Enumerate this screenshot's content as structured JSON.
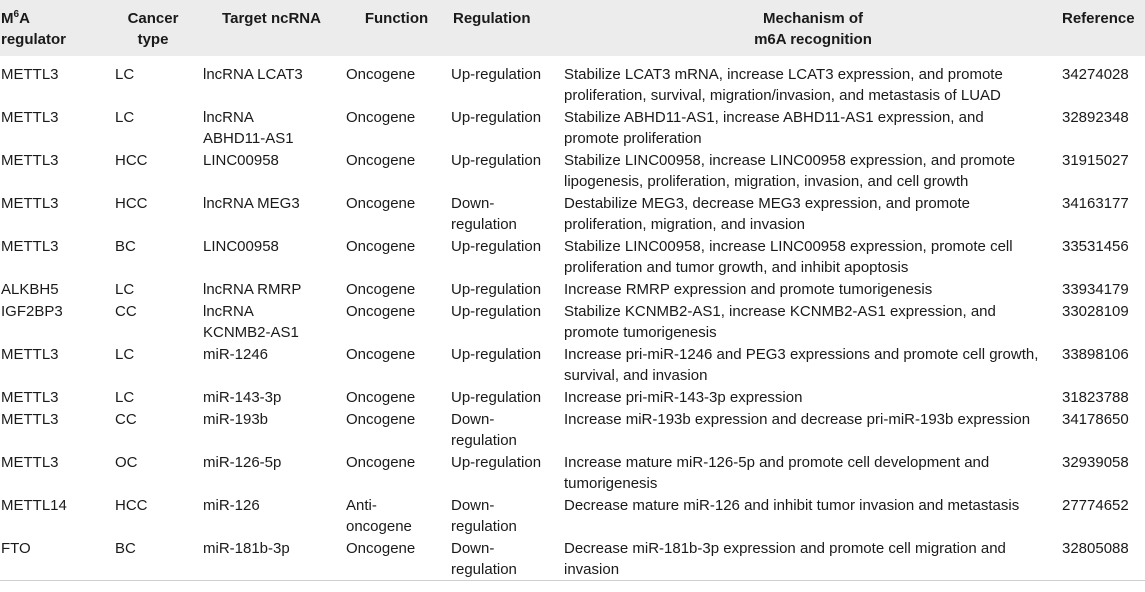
{
  "table": {
    "headers": {
      "regulator_main": "M",
      "regulator_sup": "6",
      "regulator_rest": "A\nregulator",
      "cancer_type": "Cancer\ntype",
      "target": "Target ncRNA",
      "function": "Function",
      "regulation": "Regulation",
      "mechanism": "Mechanism of\nm6A recognition",
      "reference": "Reference"
    },
    "rows": [
      {
        "regulator": "METTL3",
        "cancer": "LC",
        "target": "lncRNA LCAT3",
        "function": "Oncogene",
        "regulation": "Up-regulation",
        "mechanism": "Stabilize LCAT3 mRNA, increase LCAT3 expression, and promote\nproliferation, survival, migration/invasion, and metastasis of LUAD",
        "reference": "34274028"
      },
      {
        "regulator": "METTL3",
        "cancer": "LC",
        "target": "lncRNA\nABHD11-AS1",
        "function": "Oncogene",
        "regulation": "Up-regulation",
        "mechanism": "Stabilize ABHD11-AS1, increase ABHD11-AS1 expression, and\npromote proliferation",
        "reference": "32892348"
      },
      {
        "regulator": "METTL3",
        "cancer": "HCC",
        "target": "LINC00958",
        "function": "Oncogene",
        "regulation": "Up-regulation",
        "mechanism": "Stabilize LINC00958, increase LINC00958 expression, and promote\nlipogenesis, proliferation, migration, invasion, and cell growth",
        "reference": "31915027"
      },
      {
        "regulator": "METTL3",
        "cancer": "HCC",
        "target": "lncRNA MEG3",
        "function": "Oncogene",
        "regulation": "Down-\nregulation",
        "mechanism": "Destabilize MEG3, decrease MEG3 expression, and promote\nproliferation, migration, and invasion",
        "reference": "34163177"
      },
      {
        "regulator": "METTL3",
        "cancer": "BC",
        "target": "LINC00958",
        "function": "Oncogene",
        "regulation": "Up-regulation",
        "mechanism": "Stabilize LINC00958, increase LINC00958 expression, promote cell\nproliferation and tumor growth, and inhibit apoptosis",
        "reference": "33531456"
      },
      {
        "regulator": "ALKBH5",
        "cancer": "LC",
        "target": "lncRNA RMRP",
        "function": "Oncogene",
        "regulation": "Up-regulation",
        "mechanism": "Increase RMRP expression and promote tumorigenesis",
        "reference": "33934179"
      },
      {
        "regulator": "IGF2BP3",
        "cancer": "CC",
        "target": "lncRNA\nKCNMB2-AS1",
        "function": "Oncogene",
        "regulation": "Up-regulation",
        "mechanism": "Stabilize KCNMB2-AS1, increase KCNMB2-AS1 expression, and\npromote tumorigenesis",
        "reference": "33028109"
      },
      {
        "regulator": "METTL3",
        "cancer": "LC",
        "target": "miR-1246",
        "function": "Oncogene",
        "regulation": "Up-regulation",
        "mechanism": "Increase pri-miR-1246 and PEG3 expressions and promote cell growth,\nsurvival, and invasion",
        "reference": "33898106"
      },
      {
        "regulator": "METTL3",
        "cancer": "LC",
        "target": "miR-143-3p",
        "function": "Oncogene",
        "regulation": "Up-regulation",
        "mechanism": "Increase pri-miR-143-3p expression",
        "reference": "31823788"
      },
      {
        "regulator": "METTL3",
        "cancer": "CC",
        "target": "miR-193b",
        "function": "Oncogene",
        "regulation": "Down-\nregulation",
        "mechanism": "Increase miR-193b expression and decrease pri-miR-193b expression",
        "reference": "34178650"
      },
      {
        "regulator": "METTL3",
        "cancer": "OC",
        "target": "miR-126-5p",
        "function": "Oncogene",
        "regulation": "Up-regulation",
        "mechanism": "Increase mature miR-126-5p and promote cell development and\ntumorigenesis",
        "reference": "32939058"
      },
      {
        "regulator": "METTL14",
        "cancer": "HCC",
        "target": "miR-126",
        "function": "Anti-\noncogene",
        "regulation": "Down-\nregulation",
        "mechanism": "Decrease mature miR-126 and inhibit tumor invasion and metastasis",
        "reference": "27774652"
      },
      {
        "regulator": "FTO",
        "cancer": "BC",
        "target": "miR-181b-3p",
        "function": "Oncogene",
        "regulation": "Down-\nregulation",
        "mechanism": "Decrease miR-181b-3p expression and promote cell migration and\ninvasion",
        "reference": "32805088"
      }
    ]
  }
}
